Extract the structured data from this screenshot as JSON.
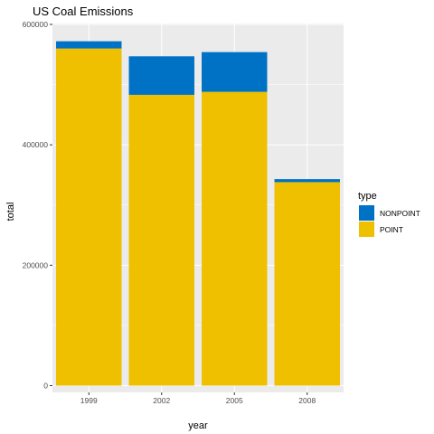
{
  "chart_data": {
    "type": "bar",
    "stacked": true,
    "title": "US Coal Emissions",
    "xlabel": "year",
    "ylabel": "total",
    "categories": [
      "1999",
      "2002",
      "2005",
      "2008"
    ],
    "series": [
      {
        "name": "NONPOINT",
        "color": "#0072C6",
        "values": [
          12000,
          64000,
          66000,
          5000
        ]
      },
      {
        "name": "POINT",
        "color": "#EFC000",
        "values": [
          560000,
          483000,
          488000,
          338000
        ]
      }
    ],
    "y_ticks": [
      0,
      200000,
      400000,
      600000
    ],
    "y_tick_labels": [
      "0",
      "200000",
      "400000",
      "600000"
    ],
    "ylim": [
      0,
      600000
    ],
    "legend": {
      "title": "type",
      "position": "right",
      "entries": [
        "NONPOINT",
        "POINT"
      ]
    },
    "grid": true,
    "panel_background": "#EBEBEB",
    "grid_color": "#FFFFFF"
  }
}
